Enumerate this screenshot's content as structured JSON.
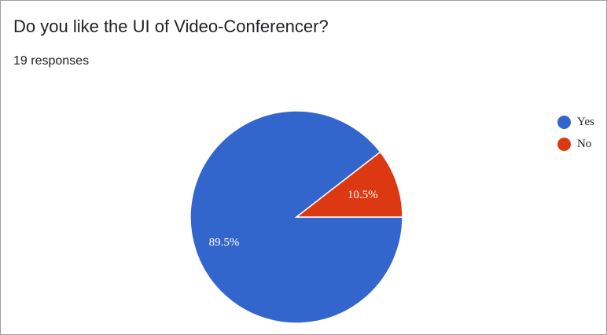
{
  "question": {
    "title": "Do you like the UI of Video-Conferencer?",
    "responses": "19 responses"
  },
  "chart_data": {
    "type": "pie",
    "categories": [
      "Yes",
      "No"
    ],
    "values": [
      89.5,
      10.5
    ],
    "labels": [
      "89.5%",
      "10.5%"
    ],
    "colors": [
      "#3366cc",
      "#dc3912"
    ],
    "legend_position": "right"
  }
}
